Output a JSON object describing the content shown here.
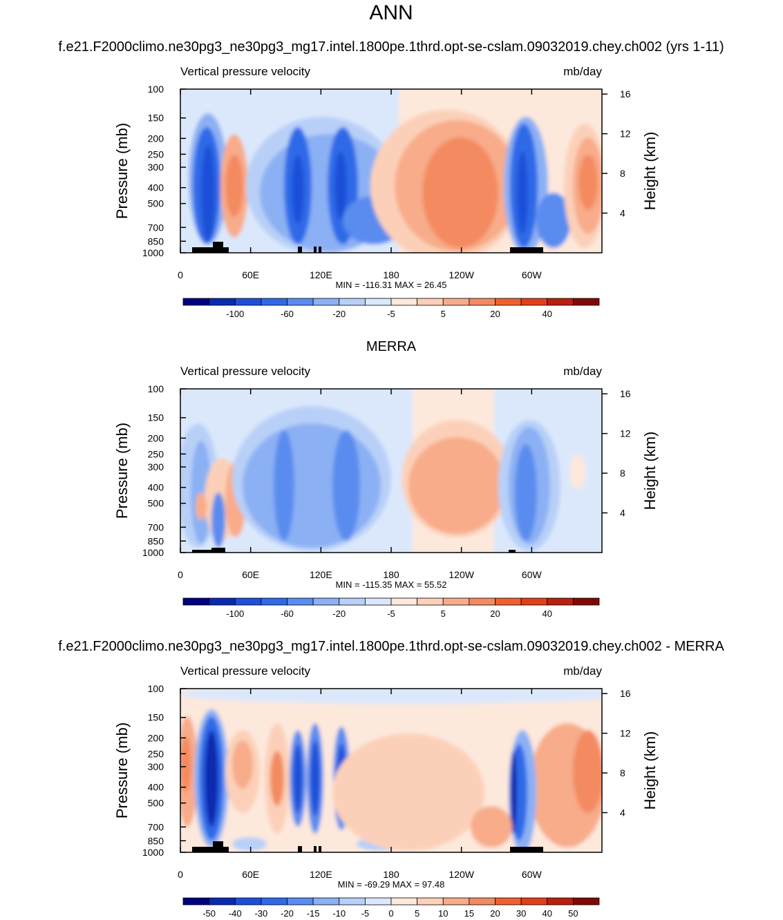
{
  "title": "ANN",
  "chart_data": [
    {
      "type": "contour",
      "subtitle": "f.e21.F2000climo.ne30pg3_ne30pg3_mg17.intel.1800pe.1thrd.opt-se-cslam.09032019.chey.ch002 (yrs 1-11)",
      "left_string": "Vertical pressure velocity",
      "right_string": "mb/day",
      "ylabel": "Pressure (mb)",
      "y2label": "Height (km)",
      "xlim": [
        0,
        360
      ],
      "xticks": [
        0,
        {
          "value": 60,
          "label": "60E"
        },
        {
          "value": 120,
          "label": "120E"
        },
        180,
        {
          "value": 240,
          "label": "120W"
        },
        {
          "value": 300,
          "label": "60W"
        }
      ],
      "ylim": [
        1000,
        100
      ],
      "log_y": true,
      "yticks": [
        100,
        150,
        200,
        250,
        300,
        400,
        500,
        700,
        850,
        1000
      ],
      "y2lim": [
        0,
        16.5
      ],
      "y2ticks": [
        4,
        8,
        12,
        16
      ],
      "stats": "MIN = -116.31  MAX =  26.45",
      "colorbar": {
        "colors": [
          "#00007f",
          "#0a2bb0",
          "#1f4fd8",
          "#2f6ae8",
          "#5a8cef",
          "#8bb0f4",
          "#b8d0f8",
          "#dbe8fc",
          "#fde8dc",
          "#fcd0b8",
          "#f8ac8a",
          "#f48a60",
          "#ef6030",
          "#e0401c",
          "#b82010",
          "#7f0a05"
        ],
        "levels": [
          null,
          -100,
          null,
          -60,
          null,
          -20,
          null,
          -5,
          null,
          5,
          null,
          20,
          null,
          40,
          null
        ]
      }
    },
    {
      "type": "contour",
      "subtitle": "MERRA",
      "left_string": "Vertical pressure velocity",
      "right_string": "mb/day",
      "ylabel": "Pressure (mb)",
      "y2label": "Height (km)",
      "xlim": [
        0,
        360
      ],
      "xticks": [
        0,
        {
          "value": 60,
          "label": "60E"
        },
        {
          "value": 120,
          "label": "120E"
        },
        180,
        {
          "value": 240,
          "label": "120W"
        },
        {
          "value": 300,
          "label": "60W"
        }
      ],
      "ylim": [
        1000,
        100
      ],
      "log_y": true,
      "yticks": [
        100,
        150,
        200,
        250,
        300,
        400,
        500,
        700,
        850,
        1000
      ],
      "y2lim": [
        0,
        16.5
      ],
      "y2ticks": [
        4,
        8,
        12,
        16
      ],
      "stats": "MIN = -115.35  MAX =  55.52",
      "colorbar": {
        "colors": [
          "#00007f",
          "#0a2bb0",
          "#1f4fd8",
          "#2f6ae8",
          "#5a8cef",
          "#8bb0f4",
          "#b8d0f8",
          "#dbe8fc",
          "#fde8dc",
          "#fcd0b8",
          "#f8ac8a",
          "#f48a60",
          "#ef6030",
          "#e0401c",
          "#b82010",
          "#7f0a05"
        ],
        "levels": [
          null,
          -100,
          null,
          -60,
          null,
          -20,
          null,
          -5,
          null,
          5,
          null,
          20,
          null,
          40,
          null
        ]
      }
    },
    {
      "type": "contour",
      "subtitle": "f.e21.F2000climo.ne30pg3_ne30pg3_mg17.intel.1800pe.1thrd.opt-se-cslam.09032019.chey.ch002 - MERRA",
      "left_string": "Vertical pressure velocity",
      "right_string": "mb/day",
      "ylabel": "Pressure (mb)",
      "y2label": "Height (km)",
      "xlim": [
        0,
        360
      ],
      "xticks": [
        0,
        {
          "value": 60,
          "label": "60E"
        },
        {
          "value": 120,
          "label": "120E"
        },
        180,
        {
          "value": 240,
          "label": "120W"
        },
        {
          "value": 300,
          "label": "60W"
        }
      ],
      "ylim": [
        1000,
        100
      ],
      "log_y": true,
      "yticks": [
        100,
        150,
        200,
        250,
        300,
        400,
        500,
        700,
        850,
        1000
      ],
      "y2lim": [
        0,
        16.5
      ],
      "y2ticks": [
        4,
        8,
        12,
        16
      ],
      "stats": "MIN = -69.29  MAX = 97.48",
      "colorbar": {
        "colors": [
          "#00007f",
          "#0a2bb0",
          "#1f4fd8",
          "#2f6ae8",
          "#5a8cef",
          "#8bb0f4",
          "#b8d0f8",
          "#dbe8fc",
          "#fde8dc",
          "#fcd0b8",
          "#f8ac8a",
          "#f48a60",
          "#ef6030",
          "#e0401c",
          "#b82010",
          "#7f0a05"
        ],
        "levels": [
          -50,
          -40,
          -30,
          -20,
          -15,
          -10,
          -5,
          0,
          5,
          10,
          15,
          20,
          30,
          40,
          50
        ]
      }
    }
  ]
}
